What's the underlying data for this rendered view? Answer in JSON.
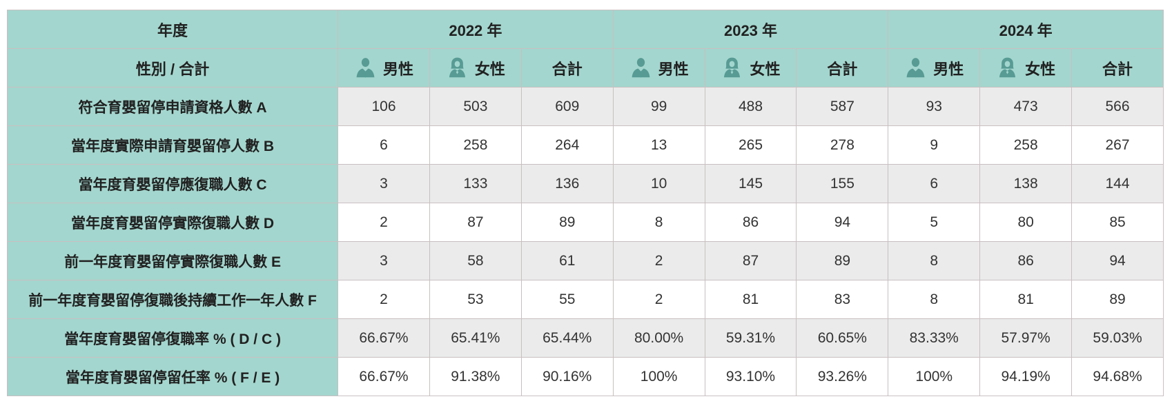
{
  "chart_data": {
    "type": "table",
    "header": {
      "year_label": "年度",
      "gender_label": "性別 / 合計",
      "years": [
        "2022 年",
        "2023 年",
        "2024 年"
      ],
      "gender_columns": [
        "男性",
        "女性",
        "合計"
      ]
    },
    "rows": [
      {
        "label": "符合育嬰留停申請資格人數 A",
        "values": [
          "106",
          "503",
          "609",
          "99",
          "488",
          "587",
          "93",
          "473",
          "566"
        ]
      },
      {
        "label": "當年度實際申請育嬰留停人數 B",
        "values": [
          "6",
          "258",
          "264",
          "13",
          "265",
          "278",
          "9",
          "258",
          "267"
        ]
      },
      {
        "label": "當年度育嬰留停應復職人數 C",
        "values": [
          "3",
          "133",
          "136",
          "10",
          "145",
          "155",
          "6",
          "138",
          "144"
        ]
      },
      {
        "label": "當年度育嬰留停實際復職人數 D",
        "values": [
          "2",
          "87",
          "89",
          "8",
          "86",
          "94",
          "5",
          "80",
          "85"
        ]
      },
      {
        "label": "前一年度育嬰留停實際復職人數 E",
        "values": [
          "3",
          "58",
          "61",
          "2",
          "87",
          "89",
          "8",
          "86",
          "94"
        ]
      },
      {
        "label": "前一年度育嬰留停復職後持續工作一年人數 F",
        "values": [
          "2",
          "53",
          "55",
          "2",
          "81",
          "83",
          "8",
          "81",
          "89"
        ]
      },
      {
        "label": "當年度育嬰留停復職率 % ( D / C )",
        "values": [
          "66.67%",
          "65.41%",
          "65.44%",
          "80.00%",
          "59.31%",
          "60.65%",
          "83.33%",
          "57.97%",
          "59.03%"
        ]
      },
      {
        "label": "當年度育嬰留停留任率 % ( F / E )",
        "values": [
          "66.67%",
          "91.38%",
          "90.16%",
          "100%",
          "93.10%",
          "93.26%",
          "100%",
          "94.19%",
          "94.68%"
        ]
      }
    ],
    "colors": {
      "header_bg": "#a3d6ce",
      "icon": "#579b94",
      "row_stripe_bg": "#ebebeb",
      "row_bg": "#ffffff",
      "border": "#c9bfc1",
      "text": "#333333"
    },
    "layout": {
      "grid": "on",
      "stripe_pattern": "odd-rows-gray"
    }
  }
}
